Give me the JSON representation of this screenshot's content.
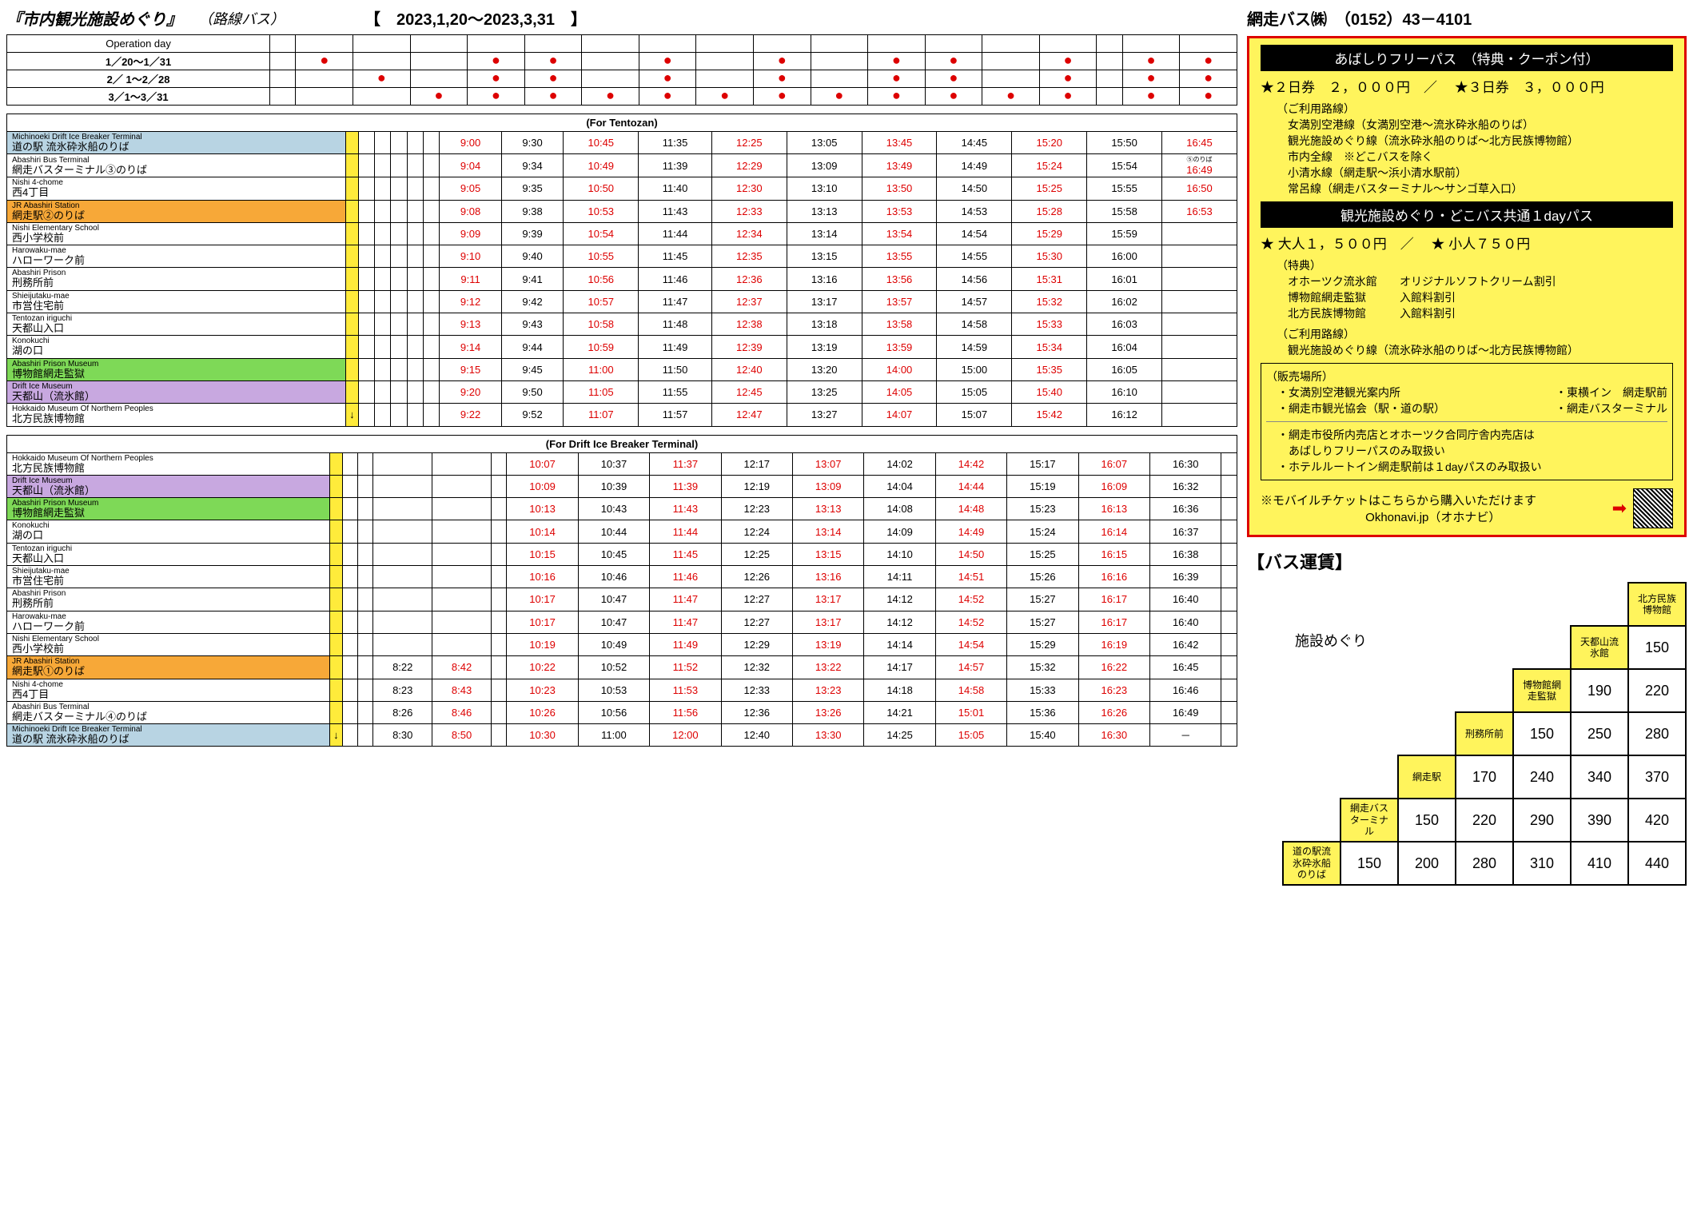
{
  "header": {
    "title_main": "『市内観光施設めぐり』",
    "title_sub": "（路線バス）",
    "date_range": "【　2023,1,20～2023,3,31　】",
    "company": "網走バス㈱　（0152）43－4101"
  },
  "op_days": {
    "header": "Operation day",
    "rows": [
      {
        "label": "1／20～1／31",
        "dots": [
          "",
          "●",
          "",
          "",
          "●",
          "●",
          "",
          "●",
          "",
          "●",
          "",
          "●",
          "●",
          "",
          "●",
          "",
          "●",
          "●"
        ]
      },
      {
        "label": "2／  1～2／28",
        "dots": [
          "",
          "",
          "●",
          "",
          "●",
          "●",
          "",
          "●",
          "",
          "●",
          "",
          "●",
          "●",
          "",
          "●",
          "",
          "●",
          "●"
        ]
      },
      {
        "label": "3／1～3／31",
        "dots": [
          "",
          "",
          "",
          "●",
          "●",
          "●",
          "●",
          "●",
          "●",
          "●",
          "●",
          "●",
          "●",
          "●",
          "●",
          "",
          "●",
          "●"
        ]
      }
    ]
  },
  "table1": {
    "section": "(For Tentozan)",
    "stops": [
      {
        "en": "Michinoeki Drift Ice Breaker Terminal",
        "jp": "道の駅 流氷砕氷船のりば",
        "hl": "hl-blue",
        "t": [
          "",
          "",
          "",
          "",
          "9:00",
          "9:30",
          "10:45",
          "11:35",
          "12:25",
          "13:05",
          "13:45",
          "14:45",
          "15:20",
          "15:50",
          "16:45"
        ],
        "red": [
          0,
          0,
          0,
          0,
          1,
          0,
          1,
          0,
          1,
          0,
          1,
          0,
          1,
          0,
          1
        ]
      },
      {
        "en": "Abashiri Bus Terminal",
        "jp": "網走バスターミナル③のりば",
        "hl": "",
        "t": [
          "",
          "",
          "",
          "",
          "9:04",
          "9:34",
          "10:49",
          "11:39",
          "12:29",
          "13:09",
          "13:49",
          "14:49",
          "15:24",
          "15:54",
          "16:49"
        ],
        "red": [
          0,
          0,
          0,
          0,
          1,
          0,
          1,
          0,
          1,
          0,
          1,
          0,
          1,
          0,
          1
        ],
        "note": "⑤のりば"
      },
      {
        "en": "Nishi 4-chome",
        "jp": "西4丁目",
        "hl": "",
        "t": [
          "",
          "",
          "",
          "",
          "9:05",
          "9:35",
          "10:50",
          "11:40",
          "12:30",
          "13:10",
          "13:50",
          "14:50",
          "15:25",
          "15:55",
          "16:50"
        ],
        "red": [
          0,
          0,
          0,
          0,
          1,
          0,
          1,
          0,
          1,
          0,
          1,
          0,
          1,
          0,
          1
        ]
      },
      {
        "en": "JR Abashiri Station",
        "jp": "網走駅②のりば",
        "hl": "hl-orange",
        "t": [
          "",
          "",
          "",
          "",
          "9:08",
          "9:38",
          "10:53",
          "11:43",
          "12:33",
          "13:13",
          "13:53",
          "14:53",
          "15:28",
          "15:58",
          "16:53"
        ],
        "red": [
          0,
          0,
          0,
          0,
          1,
          0,
          1,
          0,
          1,
          0,
          1,
          0,
          1,
          0,
          1
        ]
      },
      {
        "en": "Nishi Elementary School",
        "jp": "西小学校前",
        "hl": "",
        "t": [
          "",
          "",
          "",
          "",
          "9:09",
          "9:39",
          "10:54",
          "11:44",
          "12:34",
          "13:14",
          "13:54",
          "14:54",
          "15:29",
          "15:59",
          ""
        ],
        "red": [
          0,
          0,
          0,
          0,
          1,
          0,
          1,
          0,
          1,
          0,
          1,
          0,
          1,
          0,
          0
        ]
      },
      {
        "en": "Harowaku-mae",
        "jp": "ハローワーク前",
        "hl": "",
        "t": [
          "",
          "",
          "",
          "",
          "9:10",
          "9:40",
          "10:55",
          "11:45",
          "12:35",
          "13:15",
          "13:55",
          "14:55",
          "15:30",
          "16:00",
          ""
        ],
        "red": [
          0,
          0,
          0,
          0,
          1,
          0,
          1,
          0,
          1,
          0,
          1,
          0,
          1,
          0,
          0
        ]
      },
      {
        "en": "Abashiri Prison",
        "jp": "刑務所前",
        "hl": "",
        "t": [
          "",
          "",
          "",
          "",
          "9:11",
          "9:41",
          "10:56",
          "11:46",
          "12:36",
          "13:16",
          "13:56",
          "14:56",
          "15:31",
          "16:01",
          ""
        ],
        "red": [
          0,
          0,
          0,
          0,
          1,
          0,
          1,
          0,
          1,
          0,
          1,
          0,
          1,
          0,
          0
        ]
      },
      {
        "en": "Shieijutaku-mae",
        "jp": "市営住宅前",
        "hl": "",
        "t": [
          "",
          "",
          "",
          "",
          "9:12",
          "9:42",
          "10:57",
          "11:47",
          "12:37",
          "13:17",
          "13:57",
          "14:57",
          "15:32",
          "16:02",
          ""
        ],
        "red": [
          0,
          0,
          0,
          0,
          1,
          0,
          1,
          0,
          1,
          0,
          1,
          0,
          1,
          0,
          0
        ]
      },
      {
        "en": "Tentozan iriguchi",
        "jp": "天都山入口",
        "hl": "",
        "t": [
          "",
          "",
          "",
          "",
          "9:13",
          "9:43",
          "10:58",
          "11:48",
          "12:38",
          "13:18",
          "13:58",
          "14:58",
          "15:33",
          "16:03",
          ""
        ],
        "red": [
          0,
          0,
          0,
          0,
          1,
          0,
          1,
          0,
          1,
          0,
          1,
          0,
          1,
          0,
          0
        ]
      },
      {
        "en": "Konokuchi",
        "jp": "湖の口",
        "hl": "",
        "t": [
          "",
          "",
          "",
          "",
          "9:14",
          "9:44",
          "10:59",
          "11:49",
          "12:39",
          "13:19",
          "13:59",
          "14:59",
          "15:34",
          "16:04",
          ""
        ],
        "red": [
          0,
          0,
          0,
          0,
          1,
          0,
          1,
          0,
          1,
          0,
          1,
          0,
          1,
          0,
          0
        ]
      },
      {
        "en": "Abashiri Prison Museum",
        "jp": "博物館網走監獄",
        "hl": "hl-green",
        "t": [
          "",
          "",
          "",
          "",
          "9:15",
          "9:45",
          "11:00",
          "11:50",
          "12:40",
          "13:20",
          "14:00",
          "15:00",
          "15:35",
          "16:05",
          ""
        ],
        "red": [
          0,
          0,
          0,
          0,
          1,
          0,
          1,
          0,
          1,
          0,
          1,
          0,
          1,
          0,
          0
        ]
      },
      {
        "en": "Drift Ice Museum",
        "jp": "天都山（流氷館）",
        "hl": "hl-purple",
        "t": [
          "",
          "",
          "",
          "",
          "9:20",
          "9:50",
          "11:05",
          "11:55",
          "12:45",
          "13:25",
          "14:05",
          "15:05",
          "15:40",
          "16:10",
          ""
        ],
        "red": [
          0,
          0,
          0,
          0,
          1,
          0,
          1,
          0,
          1,
          0,
          1,
          0,
          1,
          0,
          0
        ]
      },
      {
        "en": "Hokkaido Museum Of Northern Peoples",
        "jp": "北方民族博物館",
        "hl": "",
        "arrow": "↓",
        "t": [
          "",
          "",
          "",
          "",
          "9:22",
          "9:52",
          "11:07",
          "11:57",
          "12:47",
          "13:27",
          "14:07",
          "15:07",
          "15:42",
          "16:12",
          ""
        ],
        "red": [
          0,
          0,
          0,
          0,
          1,
          0,
          1,
          0,
          1,
          0,
          1,
          0,
          1,
          0,
          0
        ]
      }
    ]
  },
  "table2": {
    "section": "(For Drift Ice Breaker Terminal)",
    "stops": [
      {
        "en": "Hokkaido Museum Of Northern Peoples",
        "jp": "北方民族博物館",
        "hl": "",
        "t": [
          "",
          "",
          "",
          "",
          "10:07",
          "10:37",
          "11:37",
          "12:17",
          "13:07",
          "14:02",
          "14:42",
          "15:17",
          "16:07",
          "16:30",
          ""
        ],
        "red": [
          0,
          0,
          0,
          0,
          1,
          0,
          1,
          0,
          1,
          0,
          1,
          0,
          1,
          0,
          0
        ]
      },
      {
        "en": "Drift Ice Museum",
        "jp": "天都山（流氷館）",
        "hl": "hl-purple",
        "t": [
          "",
          "",
          "",
          "",
          "10:09",
          "10:39",
          "11:39",
          "12:19",
          "13:09",
          "14:04",
          "14:44",
          "15:19",
          "16:09",
          "16:32",
          ""
        ],
        "red": [
          0,
          0,
          0,
          0,
          1,
          0,
          1,
          0,
          1,
          0,
          1,
          0,
          1,
          0,
          0
        ]
      },
      {
        "en": "Abashiri Prison Museum",
        "jp": "博物館網走監獄",
        "hl": "hl-green",
        "t": [
          "",
          "",
          "",
          "",
          "10:13",
          "10:43",
          "11:43",
          "12:23",
          "13:13",
          "14:08",
          "14:48",
          "15:23",
          "16:13",
          "16:36",
          ""
        ],
        "red": [
          0,
          0,
          0,
          0,
          1,
          0,
          1,
          0,
          1,
          0,
          1,
          0,
          1,
          0,
          0
        ]
      },
      {
        "en": "Konokuchi",
        "jp": "湖の口",
        "hl": "",
        "t": [
          "",
          "",
          "",
          "",
          "10:14",
          "10:44",
          "11:44",
          "12:24",
          "13:14",
          "14:09",
          "14:49",
          "15:24",
          "16:14",
          "16:37",
          ""
        ],
        "red": [
          0,
          0,
          0,
          0,
          1,
          0,
          1,
          0,
          1,
          0,
          1,
          0,
          1,
          0,
          0
        ]
      },
      {
        "en": "Tentozan iriguchi",
        "jp": "天都山入口",
        "hl": "",
        "t": [
          "",
          "",
          "",
          "",
          "10:15",
          "10:45",
          "11:45",
          "12:25",
          "13:15",
          "14:10",
          "14:50",
          "15:25",
          "16:15",
          "16:38",
          ""
        ],
        "red": [
          0,
          0,
          0,
          0,
          1,
          0,
          1,
          0,
          1,
          0,
          1,
          0,
          1,
          0,
          0
        ]
      },
      {
        "en": "Shieijutaku-mae",
        "jp": "市営住宅前",
        "hl": "",
        "t": [
          "",
          "",
          "",
          "",
          "10:16",
          "10:46",
          "11:46",
          "12:26",
          "13:16",
          "14:11",
          "14:51",
          "15:26",
          "16:16",
          "16:39",
          ""
        ],
        "red": [
          0,
          0,
          0,
          0,
          1,
          0,
          1,
          0,
          1,
          0,
          1,
          0,
          1,
          0,
          0
        ]
      },
      {
        "en": "Abashiri Prison",
        "jp": "刑務所前",
        "hl": "",
        "t": [
          "",
          "",
          "",
          "",
          "10:17",
          "10:47",
          "11:47",
          "12:27",
          "13:17",
          "14:12",
          "14:52",
          "15:27",
          "16:17",
          "16:40",
          ""
        ],
        "red": [
          0,
          0,
          0,
          0,
          1,
          0,
          1,
          0,
          1,
          0,
          1,
          0,
          1,
          0,
          0
        ]
      },
      {
        "en": "Harowaku-mae",
        "jp": "ハローワーク前",
        "hl": "",
        "t": [
          "",
          "",
          "",
          "",
          "10:17",
          "10:47",
          "11:47",
          "12:27",
          "13:17",
          "14:12",
          "14:52",
          "15:27",
          "16:17",
          "16:40",
          ""
        ],
        "red": [
          0,
          0,
          0,
          0,
          1,
          0,
          1,
          0,
          1,
          0,
          1,
          0,
          1,
          0,
          0
        ]
      },
      {
        "en": "Nishi Elementary School",
        "jp": "西小学校前",
        "hl": "",
        "t": [
          "",
          "",
          "",
          "",
          "10:19",
          "10:49",
          "11:49",
          "12:29",
          "13:19",
          "14:14",
          "14:54",
          "15:29",
          "16:19",
          "16:42",
          ""
        ],
        "red": [
          0,
          0,
          0,
          0,
          1,
          0,
          1,
          0,
          1,
          0,
          1,
          0,
          1,
          0,
          0
        ]
      },
      {
        "en": "JR Abashiri Station",
        "jp": "網走駅①のりば",
        "hl": "hl-orange",
        "t": [
          "",
          "8:22",
          "8:42",
          "",
          "10:22",
          "10:52",
          "11:52",
          "12:32",
          "13:22",
          "14:17",
          "14:57",
          "15:32",
          "16:22",
          "16:45",
          ""
        ],
        "red": [
          0,
          0,
          1,
          0,
          1,
          0,
          1,
          0,
          1,
          0,
          1,
          0,
          1,
          0,
          0
        ]
      },
      {
        "en": "Nishi 4-chome",
        "jp": "西4丁目",
        "hl": "",
        "t": [
          "",
          "8:23",
          "8:43",
          "",
          "10:23",
          "10:53",
          "11:53",
          "12:33",
          "13:23",
          "14:18",
          "14:58",
          "15:33",
          "16:23",
          "16:46",
          ""
        ],
        "red": [
          0,
          0,
          1,
          0,
          1,
          0,
          1,
          0,
          1,
          0,
          1,
          0,
          1,
          0,
          0
        ]
      },
      {
        "en": "Abashiri Bus Terminal",
        "jp": "網走バスターミナル④のりば",
        "hl": "",
        "t": [
          "",
          "8:26",
          "8:46",
          "",
          "10:26",
          "10:56",
          "11:56",
          "12:36",
          "13:26",
          "14:21",
          "15:01",
          "15:36",
          "16:26",
          "16:49",
          ""
        ],
        "red": [
          0,
          0,
          1,
          0,
          1,
          0,
          1,
          0,
          1,
          0,
          1,
          0,
          1,
          0,
          0
        ]
      },
      {
        "en": "Michinoeki Drift Ice Breaker Terminal",
        "jp": "道の駅 流氷砕氷船のりば",
        "hl": "hl-blue",
        "arrow": "↓",
        "t": [
          "",
          "8:30",
          "8:50",
          "",
          "10:30",
          "11:00",
          "12:00",
          "12:40",
          "13:30",
          "14:25",
          "15:05",
          "15:40",
          "16:30",
          "－",
          ""
        ],
        "red": [
          0,
          0,
          1,
          0,
          1,
          0,
          1,
          0,
          1,
          0,
          1,
          0,
          1,
          0,
          0
        ]
      }
    ]
  },
  "pass": {
    "title1": "あばしりフリーパス　（特典・クーポン付）",
    "price1a": "★２日券　２，０００円",
    "price1b": "★３日券　３，０００円",
    "routes_title": "（ご利用路線）",
    "routes": [
      "女満別空港線（女満別空港～流氷砕氷船のりば）",
      "観光施設めぐり線（流氷砕氷船のりば～北方民族博物館）",
      "市内全線　※どこバスを除く",
      "小清水線（網走駅～浜小清水駅前）",
      "常呂線（網走バスターミナル～サンゴ草入口）"
    ],
    "title2": "観光施設めぐり・どこバス共通１dayパス",
    "price2a": "★ 大人１，５００円",
    "price2b": "★ 小人７５０円",
    "benefits_title": "（特典）",
    "benefits": [
      {
        "place": "オホーツク流氷館",
        "desc": "オリジナルソフトクリーム割引"
      },
      {
        "place": "博物館網走監獄",
        "desc": "入館料割引"
      },
      {
        "place": "北方民族博物館",
        "desc": "入館料割引"
      }
    ],
    "routes2_title": "（ご利用路線）",
    "routes2": [
      "観光施設めぐり線（流氷砕氷船のりば～北方民族博物館）"
    ],
    "sales_title": "（販売場所）",
    "sales": [
      {
        "l": "・女満別空港観光案内所",
        "r": "・東横イン　網走駅前"
      },
      {
        "l": "・網走市観光協会（駅・道の駅）",
        "r": "・網走バスターミナル"
      }
    ],
    "notes": [
      "・網走市役所内売店とオホーツク合同庁舎内売店は",
      "　あばしりフリーパスのみ取扱い",
      "・ホテルルートイン網走駅前は１dayパスのみ取扱い"
    ],
    "mobile": "※モバイルチケットはこちらから購入いただけます",
    "mobile_sub": "Okhonavi.jp（オホナビ）"
  },
  "fare": {
    "title": "【バス運賃】",
    "sub": "施設めぐり",
    "labels": [
      "北方民族博物館",
      "天都山流氷館",
      "博物館網走監獄",
      "刑務所前",
      "網走駅",
      "網走バスターミナル",
      "道の駅流氷砕氷船のりば"
    ],
    "grid": [
      [
        "150"
      ],
      [
        "190",
        "220"
      ],
      [
        "150",
        "250",
        "280"
      ],
      [
        "170",
        "240",
        "340",
        "370"
      ],
      [
        "150",
        "220",
        "290",
        "390",
        "420"
      ],
      [
        "150",
        "200",
        "280",
        "310",
        "410",
        "440"
      ]
    ]
  }
}
